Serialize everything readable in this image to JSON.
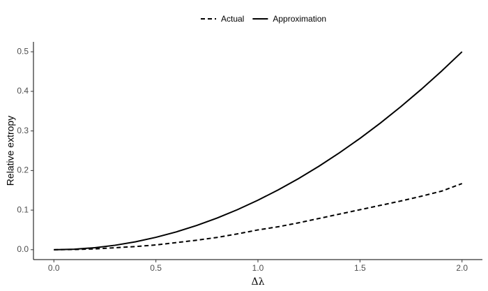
{
  "chart_data": {
    "type": "line",
    "x_label": "Δλ",
    "y_label": "Relative extropy",
    "x": [
      0,
      0.1,
      0.2,
      0.3,
      0.4,
      0.5,
      0.6,
      0.7,
      0.8,
      0.9,
      1.0,
      1.1,
      1.2,
      1.3,
      1.4,
      1.5,
      1.6,
      1.7,
      1.8,
      1.9,
      2.0
    ],
    "series": [
      {
        "name": "Actual",
        "color": "#000000",
        "linestyle": "dashed",
        "values": [
          0,
          0.0005,
          0.002,
          0.005,
          0.008,
          0.012,
          0.018,
          0.024,
          0.031,
          0.04,
          0.05,
          0.058,
          0.068,
          0.079,
          0.09,
          0.101,
          0.112,
          0.123,
          0.135,
          0.148,
          0.167
        ]
      },
      {
        "name": "Approximation",
        "color": "#000000",
        "linestyle": "solid",
        "values": [
          0,
          0.00125,
          0.005,
          0.01125,
          0.02,
          0.03125,
          0.045,
          0.06125,
          0.08,
          0.10125,
          0.125,
          0.15125,
          0.18,
          0.21125,
          0.245,
          0.28125,
          0.32,
          0.36125,
          0.405,
          0.45125,
          0.5
        ]
      }
    ],
    "xlim": [
      -0.1,
      2.1
    ],
    "ylim": [
      -0.025,
      0.525
    ],
    "xticks": [
      {
        "value": 0,
        "label": "0.0"
      },
      0.5,
      {
        "value": 1,
        "label": "1.0"
      },
      1.5,
      {
        "value": 2,
        "label": "2.0"
      }
    ],
    "yticks": [
      {
        "value": 0,
        "label": "0.0"
      },
      0.1,
      0.2,
      0.3,
      0.4,
      0.5
    ],
    "legend": "top",
    "grid": false
  }
}
